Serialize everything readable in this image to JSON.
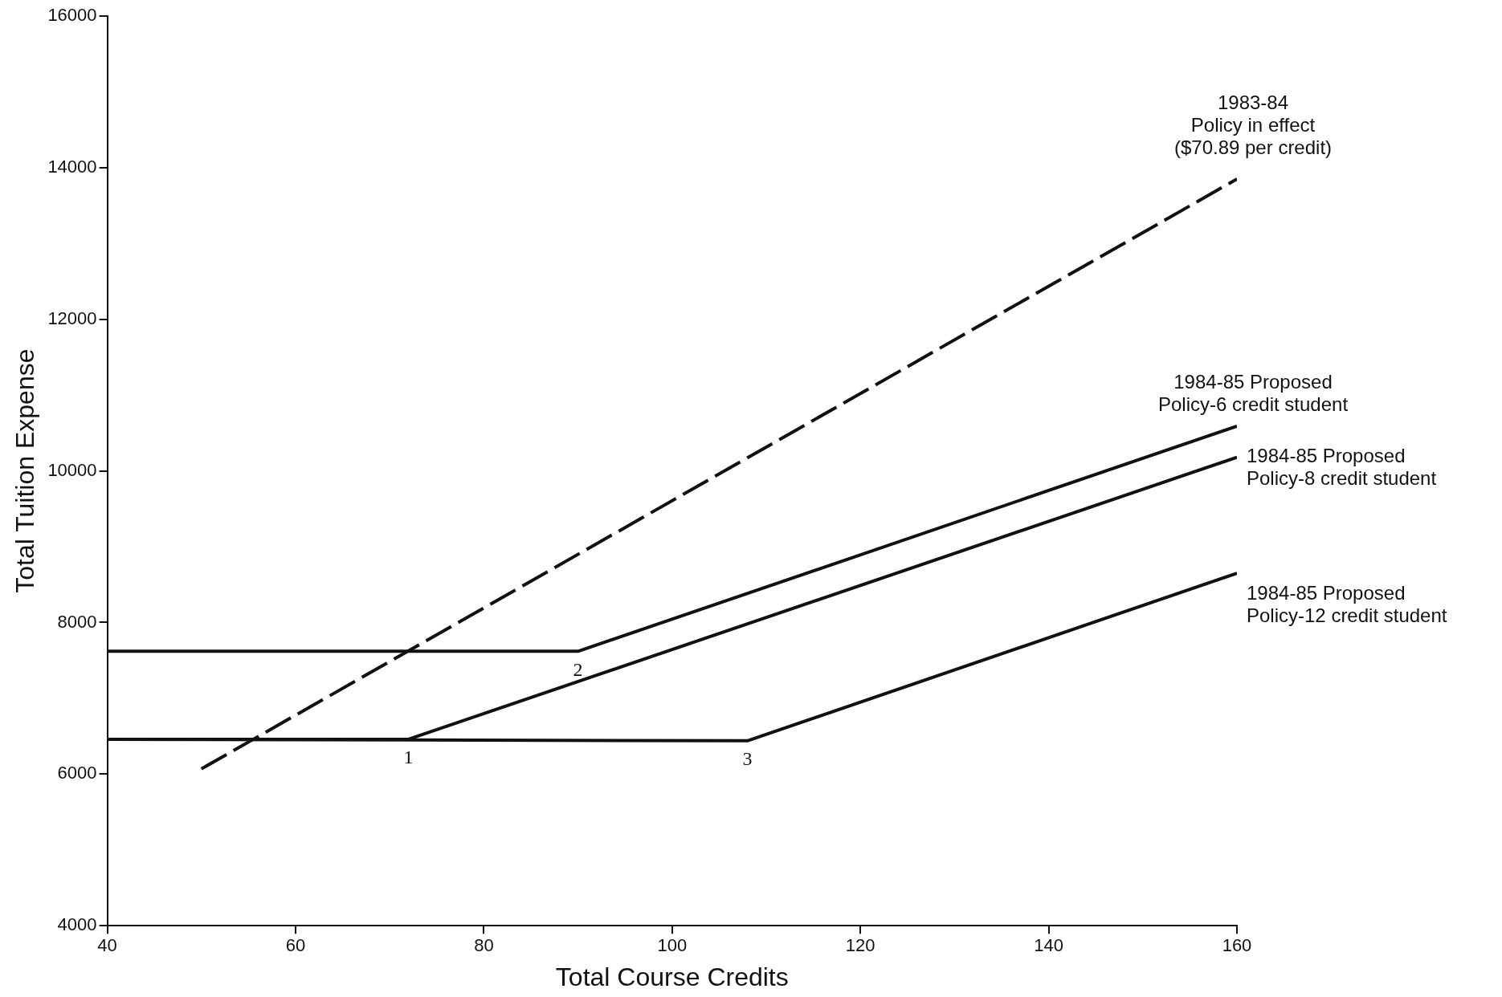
{
  "chart_data": {
    "type": "line",
    "xlabel": "Total Course Credits",
    "ylabel": "Total Tuition Expense",
    "xlim": [
      40,
      160
    ],
    "xticks": [
      40,
      60,
      80,
      100,
      120,
      140,
      160
    ],
    "ylim": [
      4000,
      16000
    ],
    "yticks": [
      4000,
      6000,
      8000,
      10000,
      12000,
      14000,
      16000
    ],
    "grid": false,
    "legend": false,
    "marker": "none",
    "series": [
      {
        "name": "1983-84\nPolicy in effect\n($70.89 per credit)",
        "color": "#111111",
        "line_style": "dashed",
        "x": [
          50,
          160
        ],
        "values": [
          6070,
          13850
        ]
      },
      {
        "name": "1984-85 Proposed\nPolicy-6 credit student",
        "color": "#111111",
        "line_style": "solid",
        "x": [
          40,
          90,
          160
        ],
        "values": [
          7620,
          7620,
          10590
        ]
      },
      {
        "name": "1984-85 Proposed\nPolicy-8 credit student",
        "color": "#111111",
        "line_style": "solid",
        "x": [
          40,
          72,
          160
        ],
        "values": [
          6460,
          6460,
          10180
        ]
      },
      {
        "name": "1984-85 Proposed\nPolicy-12 credit student",
        "color": "#111111",
        "line_style": "solid",
        "x": [
          40,
          108,
          160
        ],
        "values": [
          6460,
          6440,
          8650
        ]
      }
    ],
    "annotations": [
      {
        "text": "1",
        "x": 72,
        "y": 6460
      },
      {
        "text": "2",
        "x": 90,
        "y": 7620
      },
      {
        "text": "3",
        "x": 108,
        "y": 6440
      }
    ]
  }
}
